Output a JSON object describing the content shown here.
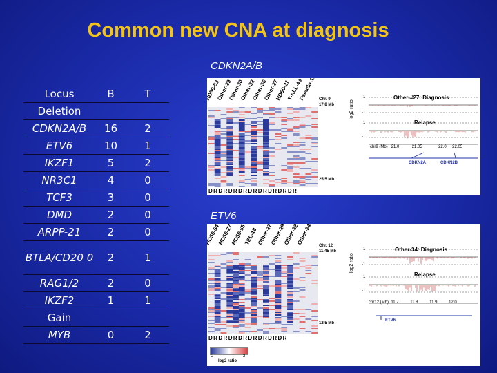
{
  "title": "Common new CNA at diagnosis",
  "labels": {
    "top_panel": "CDKN2A/B",
    "bottom_panel": "ETV6"
  },
  "table": {
    "headers": [
      "Locus",
      "B",
      "T"
    ],
    "sections": [
      {
        "group": "Deletion",
        "rows": [
          {
            "locus": "CDKN2A/B",
            "b": "16",
            "t": "2"
          },
          {
            "locus": "ETV6",
            "b": "10",
            "t": "1"
          },
          {
            "locus": "IKZF1",
            "b": "5",
            "t": "2"
          },
          {
            "locus": "NR3C1",
            "b": "4",
            "t": "0"
          },
          {
            "locus": "TCF3",
            "b": "3",
            "t": "0"
          },
          {
            "locus": "DMD",
            "b": "2",
            "t": "0"
          },
          {
            "locus": "ARPP-21",
            "b": "2",
            "t": "0"
          },
          {
            "locus": "BTLA/CD20 0",
            "b": "2",
            "t": "1"
          },
          {
            "locus": "RAG1/2",
            "b": "2",
            "t": "0"
          },
          {
            "locus": "IKZF2",
            "b": "1",
            "t": "1"
          }
        ]
      },
      {
        "group": "Gain",
        "rows": [
          {
            "locus": "MYB",
            "b": "0",
            "t": "2"
          }
        ]
      }
    ]
  },
  "panel_top": {
    "columns": [
      "HD50-53",
      "Other-29",
      "Other-30",
      "Other-32",
      "Other-36",
      "Other-27",
      "HD50-27",
      "T-ALL-43",
      "Pseudo-18"
    ],
    "rd_row": "DRDRDRDRDRDRDRDRDR",
    "chr_label": "Chr. 9",
    "chr_pos_top": "17.8 Mb",
    "chr_pos_bottom": "25.5 Mb",
    "plot_title": "Other-#27: Diagnosis",
    "relapse": "Relapse",
    "ylabel": "log2 ratio",
    "ticks": [
      "1",
      "-1",
      "1",
      "-1"
    ],
    "xaxis": [
      "chr9 (Mb)",
      "21.0",
      "21.05",
      "22.0",
      "22.05"
    ],
    "genes": [
      "CDKN2A",
      "CDKN2B"
    ]
  },
  "panel_bottom": {
    "columns": [
      "HD50-54",
      "HD50-27",
      "HD50-55",
      "TEL-18",
      "Other-27",
      "Other-29",
      "Other-32",
      "Other-34"
    ],
    "rd_row": "DRDRDRDRDRDRDRDR",
    "chr_label": "Chr. 12",
    "chr_pos_top": "11.45 Mb",
    "chr_pos_bottom": "12.5 Mb",
    "plot_title": "Other-34: Diagnosis",
    "relapse": "Relapse",
    "ylabel": "log2 ratio",
    "ticks": [
      "1",
      "-1",
      "1",
      "-1"
    ],
    "xaxis": [
      "chr12 (Mb)",
      "11.7",
      "11.8",
      "11.9",
      "12.0"
    ],
    "genes": [
      "ETV6"
    ],
    "scale_min": "-2",
    "scale_max": "2",
    "scale_label": "log2 ratio"
  },
  "colors": {
    "title": "#f2c418",
    "loss": "#2a3a9a",
    "gain": "#d84040"
  }
}
